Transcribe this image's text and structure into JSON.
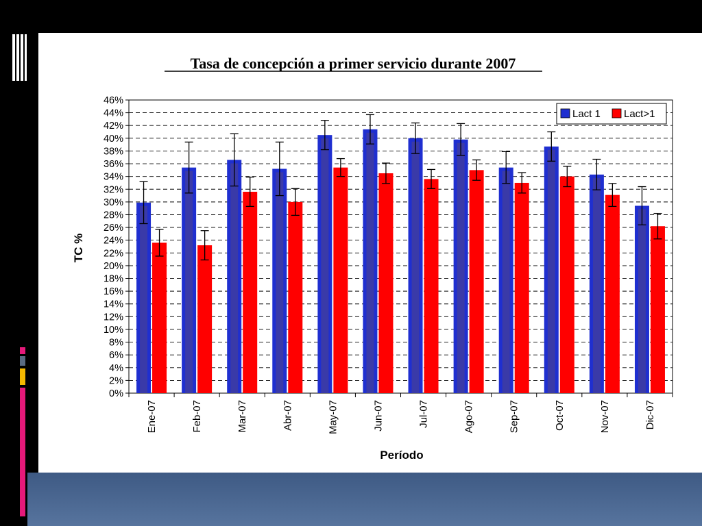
{
  "chart_data": {
    "type": "bar",
    "title": "Tasa de concepción a primer servicio durante 2007",
    "xlabel": "Período",
    "ylabel": "TC %",
    "ylim": [
      0,
      46
    ],
    "y_tick_step": 2,
    "y_tick_format": "percent",
    "grid": "horizontal-dashed",
    "legend_position": "top-right",
    "error_bars": true,
    "categories": [
      "Ene-07",
      "Feb-07",
      "Mar-07",
      "Abr-07",
      "May-07",
      "Jun-07",
      "Jul-07",
      "Ago-07",
      "Sep-07",
      "Oct-07",
      "Nov-07",
      "Dic-07"
    ],
    "series": [
      {
        "name": "Lact 1",
        "color": "#1f2fd0",
        "inner_color": "#3a3aa8",
        "values": [
          29.9,
          35.4,
          36.6,
          35.2,
          40.5,
          41.4,
          40.0,
          39.8,
          35.4,
          38.7,
          34.3,
          29.4
        ],
        "error": [
          3.3,
          4.0,
          4.1,
          4.2,
          2.3,
          2.3,
          2.4,
          2.5,
          2.5,
          2.3,
          2.4,
          3.0
        ]
      },
      {
        "name": "Lact>1",
        "color": "#ff0000",
        "inner_color": "#ff0000",
        "values": [
          23.6,
          23.2,
          31.6,
          30.0,
          35.4,
          34.5,
          33.6,
          35.0,
          33.0,
          34.0,
          31.1,
          26.2
        ],
        "error": [
          2.1,
          2.3,
          2.3,
          2.1,
          1.4,
          1.6,
          1.5,
          1.6,
          1.6,
          1.6,
          1.8,
          2.0
        ]
      }
    ]
  },
  "decorations": {
    "slide_background": "#000000",
    "panel_color": "#ffffff",
    "bottom_band_top": "#3e5a84",
    "bottom_band_bottom": "#57749e",
    "accent_pink": "#e6197a",
    "accent_gray": "#5a6b82",
    "accent_gold": "#f5b800"
  }
}
